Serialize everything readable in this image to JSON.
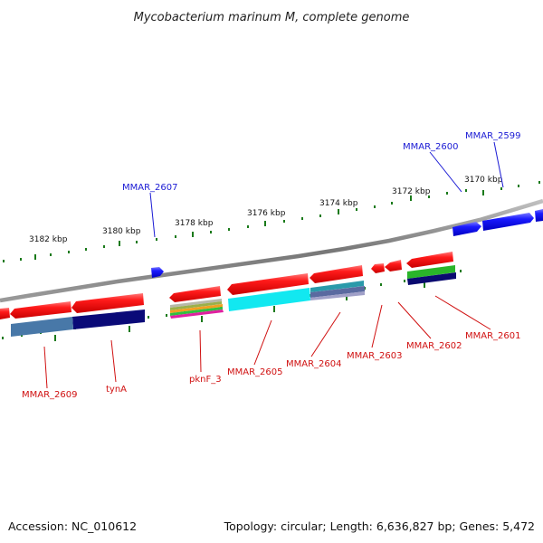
{
  "title": "Mycobacterium marinum M, complete genome",
  "footer": {
    "accession": "Accession: NC_010612",
    "summary": "Topology: circular; Length: 6,636,827 bp; Genes: 5,472"
  },
  "ticks": {
    "color": "#1a7a1a",
    "labels": [
      "3182 kbp",
      "3180 kbp",
      "3178 kbp",
      "3176 kbp",
      "3174 kbp",
      "3172 kbp",
      "3170 kbp"
    ]
  },
  "colors": {
    "backbone": "#8a8a8a",
    "forward_gene": "#1010ee",
    "reverse_gene": "#ee1010",
    "label_forward": "#1a1ad4",
    "label_reverse": "#d01010"
  },
  "labels": {
    "forward": [
      "MMAR_2599",
      "MMAR_2600",
      "MMAR_2607"
    ],
    "reverse": [
      "MMAR_2601",
      "MMAR_2602",
      "MMAR_2603",
      "MMAR_2604",
      "MMAR_2605",
      "pknF_3",
      "tynA",
      "MMAR_2609"
    ]
  }
}
